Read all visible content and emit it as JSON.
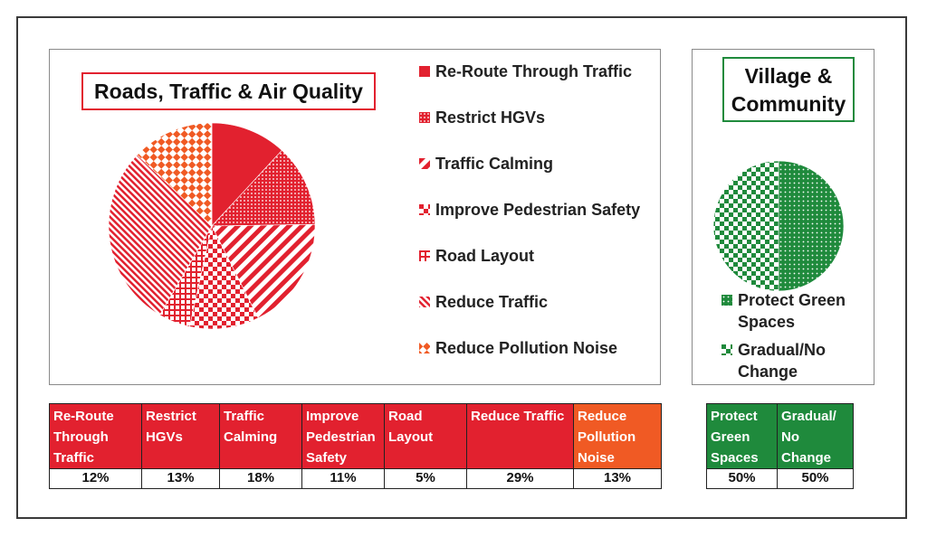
{
  "roads_panel": {
    "title": "Roads, Traffic & Air Quality",
    "legend": [
      {
        "label": "Re-Route Through Traffic",
        "pattern": "solid"
      },
      {
        "label": "Restrict HGVs",
        "pattern": "dots"
      },
      {
        "label": "Traffic Calming",
        "pattern": "diag"
      },
      {
        "label": "Improve Pedestrian Safety",
        "pattern": "checker"
      },
      {
        "label": "Road Layout",
        "pattern": "grid"
      },
      {
        "label": "Reduce Traffic",
        "pattern": "fine-diag"
      },
      {
        "label": "Reduce Pollution Noise",
        "pattern": "orange-checker"
      }
    ],
    "table_headers": [
      "Re-Route Through Traffic",
      "Restrict HGVs",
      "Traffic Calming",
      "Improve Pedestrian Safety",
      "Road Layout",
      "Reduce Traffic",
      "Reduce Pollution Noise"
    ],
    "table_values": [
      "12%",
      "13%",
      "18%",
      "11%",
      "5%",
      "29%",
      "13%"
    ]
  },
  "village_panel": {
    "title": "Village & Community",
    "legend": [
      {
        "label": "Protect Green Spaces",
        "pattern": "green-dots"
      },
      {
        "label": "Gradual/No Change",
        "pattern": "green-checker"
      }
    ],
    "table_headers": [
      "Protect Green Spaces",
      "Gradual/ No Change"
    ],
    "table_values": [
      "50%",
      "50%"
    ]
  },
  "colors": {
    "red": "#e2212f",
    "orange": "#f05a24",
    "green": "#1f8a3c"
  },
  "chart_data": [
    {
      "type": "pie",
      "title": "Roads, Traffic & Air Quality",
      "categories": [
        "Re-Route Through Traffic",
        "Restrict HGVs",
        "Traffic Calming",
        "Improve Pedestrian Safety",
        "Road Layout",
        "Reduce Traffic",
        "Reduce Pollution Noise"
      ],
      "values": [
        12,
        13,
        18,
        11,
        5,
        29,
        13
      ],
      "legend": "right"
    },
    {
      "type": "pie",
      "title": "Village & Community",
      "categories": [
        "Protect Green Spaces",
        "Gradual/No Change"
      ],
      "values": [
        50,
        50
      ],
      "legend": "bottom"
    }
  ]
}
